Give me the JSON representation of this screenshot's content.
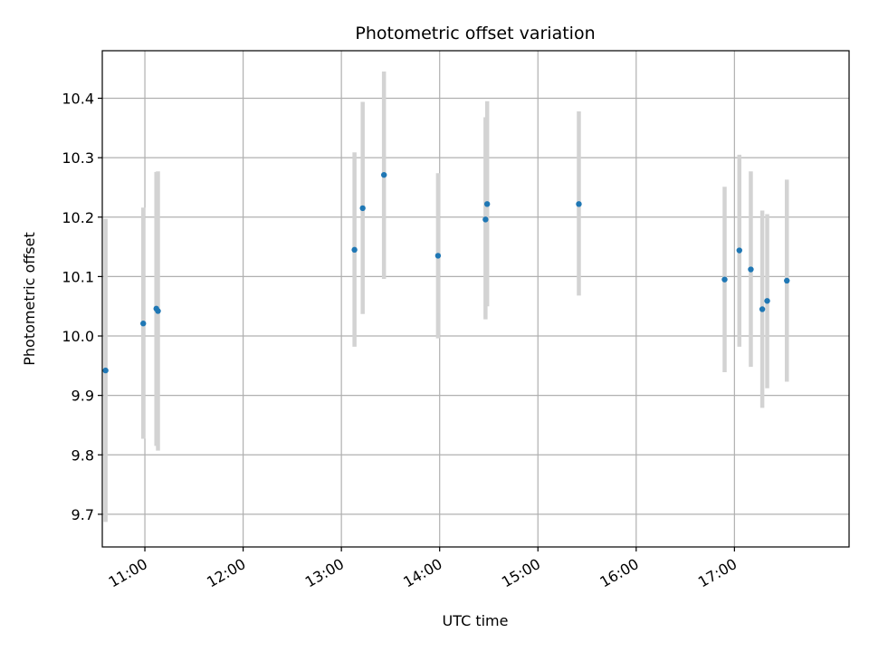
{
  "chart_data": {
    "type": "scatter",
    "title": "Photometric offset variation",
    "xlabel": "UTC time",
    "ylabel": "Photometric offset",
    "x_ticks": [
      "11:00",
      "12:00",
      "13:00",
      "14:00",
      "15:00",
      "16:00",
      "17:00"
    ],
    "y_ticks": [
      "9.7",
      "9.8",
      "9.9",
      "10.0",
      "10.1",
      "10.2",
      "10.3",
      "10.4"
    ],
    "x_range": [
      "10:34",
      "18:10"
    ],
    "ylim": [
      9.645,
      10.48
    ],
    "grid": true,
    "marker_color": "#1f77b4",
    "errorbar_color": "#d3d3d3",
    "points": [
      {
        "x": "10:36",
        "y": 9.942,
        "err_low": 9.687,
        "err_high": 10.197
      },
      {
        "x": "10:59",
        "y": 10.021,
        "err_low": 9.827,
        "err_high": 10.216
      },
      {
        "x": "11:07",
        "y": 10.046,
        "err_low": 9.815,
        "err_high": 10.276
      },
      {
        "x": "11:08",
        "y": 10.042,
        "err_low": 9.807,
        "err_high": 10.277
      },
      {
        "x": "13:08",
        "y": 10.145,
        "err_low": 9.982,
        "err_high": 10.309
      },
      {
        "x": "13:13",
        "y": 10.215,
        "err_low": 10.037,
        "err_high": 10.394
      },
      {
        "x": "13:26",
        "y": 10.271,
        "err_low": 10.096,
        "err_high": 10.445
      },
      {
        "x": "13:59",
        "y": 10.135,
        "err_low": 9.996,
        "err_high": 10.274
      },
      {
        "x": "14:28",
        "y": 10.196,
        "err_low": 10.028,
        "err_high": 10.368
      },
      {
        "x": "14:29",
        "y": 10.222,
        "err_low": 10.05,
        "err_high": 10.395
      },
      {
        "x": "15:25",
        "y": 10.222,
        "err_low": 10.068,
        "err_high": 10.378
      },
      {
        "x": "16:54",
        "y": 10.095,
        "err_low": 9.939,
        "err_high": 10.251
      },
      {
        "x": "17:03",
        "y": 10.144,
        "err_low": 9.982,
        "err_high": 10.305
      },
      {
        "x": "17:10",
        "y": 10.112,
        "err_low": 9.948,
        "err_high": 10.277
      },
      {
        "x": "17:17",
        "y": 10.045,
        "err_low": 9.879,
        "err_high": 10.211
      },
      {
        "x": "17:20",
        "y": 10.059,
        "err_low": 9.912,
        "err_high": 10.205
      },
      {
        "x": "17:32",
        "y": 10.093,
        "err_low": 9.923,
        "err_high": 10.263
      }
    ]
  }
}
